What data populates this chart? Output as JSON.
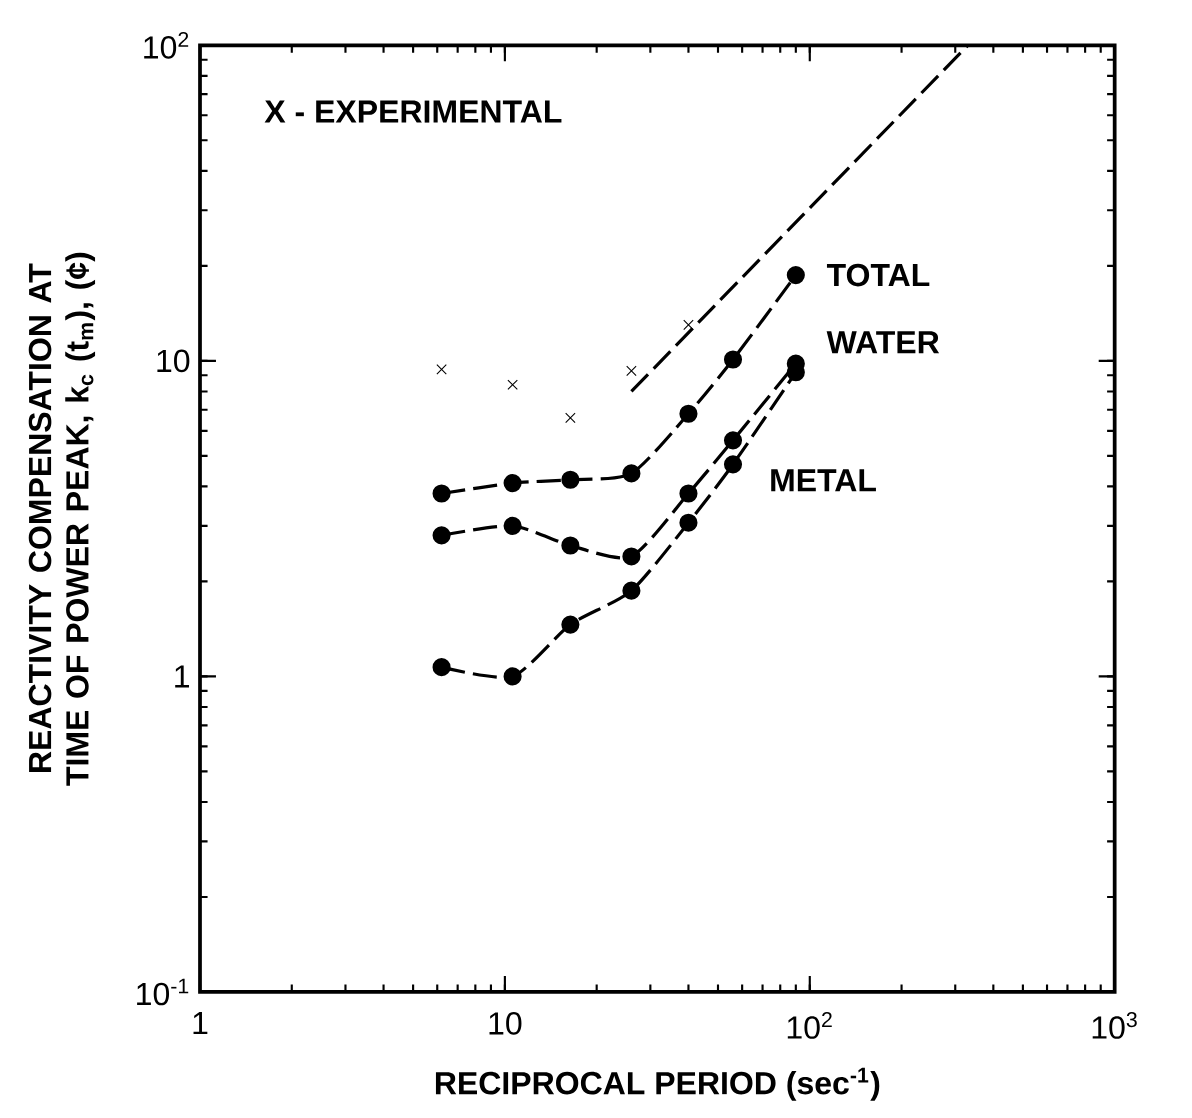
{
  "chart_data": {
    "type": "line",
    "xlabel": "RECIPROCAL PERIOD (sec$^{-1}$)",
    "ylabel": "REACTIVITY COMPENSATION AT TIME OF POWER PEAK, k$_{c}$ (t$_{m}$), (¢)",
    "annotations": [
      "X - EXPERIMENTAL"
    ],
    "log": "xy",
    "xlim": [
      1,
      1000
    ],
    "ylim": [
      0.1,
      100
    ],
    "xticks": [
      1,
      10,
      {
        "value": 100,
        "label": "10$^{2}$"
      },
      {
        "value": 1000,
        "label": "10$^{3}$"
      }
    ],
    "yticks": [
      {
        "value": 0.1,
        "label": "10$^{-1}$"
      },
      1,
      10,
      {
        "value": 100,
        "label": "10$^{2}$"
      }
    ],
    "grid": false,
    "line_style": "dashed",
    "series": [
      {
        "name": "TOTAL",
        "color": "#000000",
        "marker": "circle",
        "x": [
          6.2,
          10.6,
          16.4,
          26,
          40,
          56,
          90
        ],
        "values": [
          3.8,
          4.1,
          4.2,
          4.4,
          6.8,
          10.1,
          18.7
        ]
      },
      {
        "name": "WATER",
        "color": "#000000",
        "marker": "circle",
        "x": [
          6.2,
          10.6,
          16.4,
          26,
          40,
          56,
          90
        ],
        "values": [
          2.8,
          3.0,
          2.6,
          2.4,
          3.8,
          5.6,
          9.8
        ]
      },
      {
        "name": "METAL",
        "color": "#000000",
        "marker": "circle",
        "x": [
          6.2,
          10.6,
          16.4,
          26,
          40,
          56,
          90
        ],
        "values": [
          1.07,
          1.0,
          1.46,
          1.87,
          3.07,
          4.7,
          9.2
        ]
      },
      {
        "type": "scatter",
        "color": "#000000",
        "marker": "cross",
        "x": [
          6.2,
          10.6,
          16.4,
          26,
          40
        ],
        "values": [
          9.4,
          8.4,
          6.6,
          9.3,
          13.0
        ]
      },
      {
        "color": "#000000",
        "marker": "none",
        "x": [
          26,
          330
        ],
        "values": [
          8,
          100
        ]
      }
    ]
  }
}
